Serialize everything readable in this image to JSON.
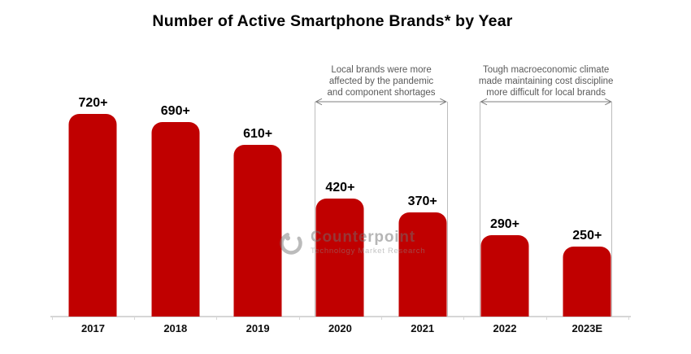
{
  "title": "Number of Active Smartphone Brands* by Year",
  "chart_data": {
    "type": "bar",
    "title": "Number of Active Smartphone Brands* by Year",
    "categories": [
      "2017",
      "2018",
      "2019",
      "2020",
      "2021",
      "2022",
      "2023E"
    ],
    "values": [
      720,
      690,
      610,
      420,
      370,
      290,
      250
    ],
    "value_labels": [
      "720+",
      "690+",
      "610+",
      "420+",
      "370+",
      "290+",
      "250+"
    ],
    "xlabel": "",
    "ylabel": "",
    "ylim": [
      0,
      720
    ],
    "grid": false,
    "legend": false,
    "bar_color": "#c00000"
  },
  "annotations": [
    {
      "lines": [
        "Local brands were more",
        "affected by the pandemic",
        "and component shortages"
      ],
      "span_categories": [
        "2020",
        "2021"
      ]
    },
    {
      "lines": [
        "Tough macroeconomic climate",
        "made maintaining cost discipline",
        "more difficult for local brands"
      ],
      "span_categories": [
        "2022",
        "2023E"
      ]
    }
  ],
  "watermark": {
    "name": "Counterpoint",
    "tagline": "Technology Market Research"
  },
  "colors": {
    "bar": "#c00000",
    "title_text": "#000000",
    "annotation_text": "#5a5a5a",
    "arrow": "#7f7f7f",
    "bracket": "#bcbcbc",
    "axis": "#d6d6d6",
    "watermark": "#8a8a8a"
  }
}
